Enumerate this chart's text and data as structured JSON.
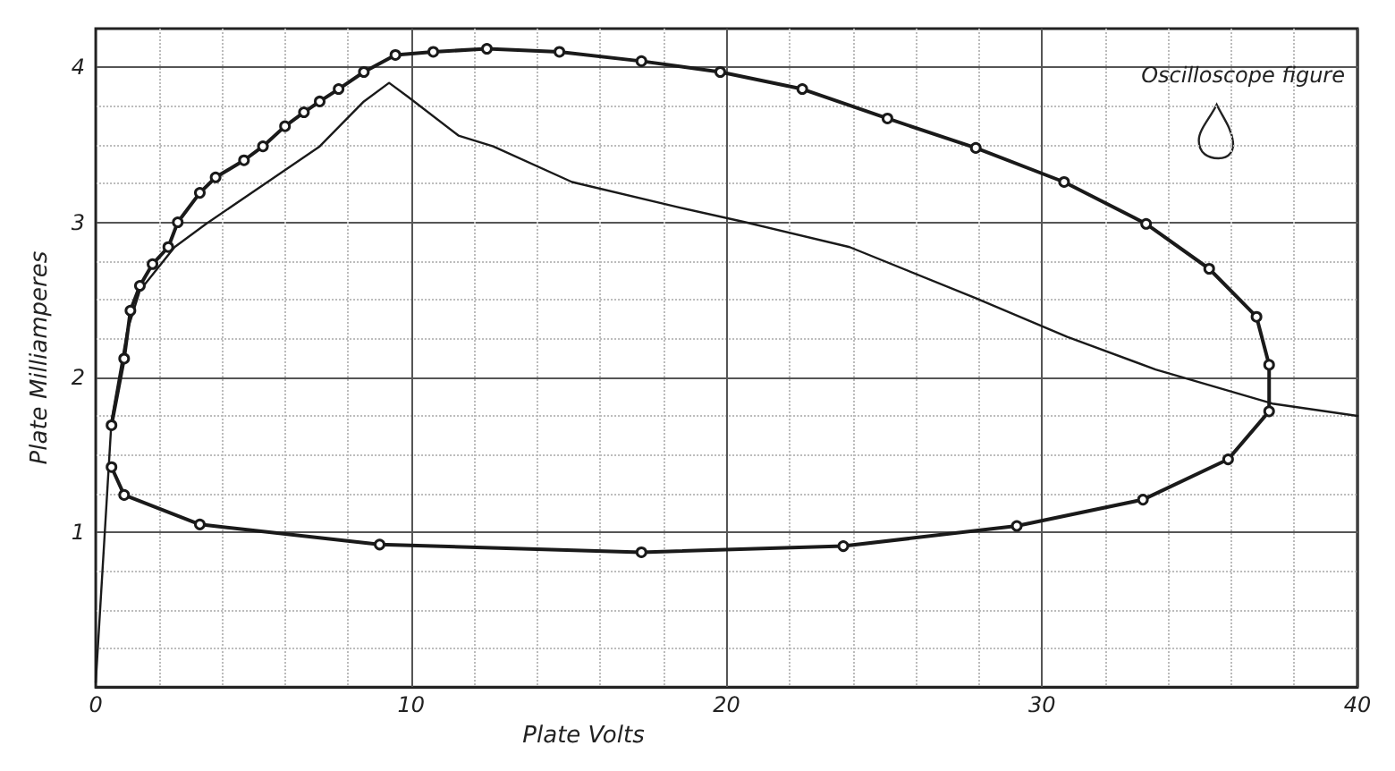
{
  "chart_data": {
    "type": "line",
    "xlabel": "Plate Volts",
    "ylabel": "Plate Milliamperes",
    "annotations": [
      "Oscilloscope figure"
    ],
    "xlim": [
      0,
      40
    ],
    "xticks": [
      0,
      10,
      20,
      30,
      40
    ],
    "ylim": [
      0,
      4.25
    ],
    "yticks": [
      1,
      2,
      3,
      4
    ],
    "grid": true,
    "series": [
      {
        "color": "#1a1a1a",
        "marker": "circle",
        "line_style": "solid",
        "x": [
          0.5,
          0.9,
          1.1,
          1.4,
          1.8,
          2.3,
          2.6,
          3.3,
          3.8,
          4.7,
          5.3,
          6.0,
          6.6,
          7.1,
          7.7,
          8.5,
          9.5,
          10.7,
          12.4,
          14.7,
          17.3,
          19.8,
          22.4,
          25.1,
          27.9,
          30.7,
          33.3,
          35.3,
          36.8,
          37.2,
          37.2,
          35.9,
          33.2,
          29.2,
          23.7,
          17.3,
          9.0,
          3.3,
          0.9,
          0.5
        ],
        "values": [
          1.69,
          2.12,
          2.43,
          2.59,
          2.73,
          2.84,
          3.0,
          3.19,
          3.29,
          3.4,
          3.49,
          3.62,
          3.71,
          3.78,
          3.86,
          3.97,
          4.08,
          4.1,
          4.12,
          4.1,
          4.04,
          3.97,
          3.86,
          3.67,
          3.48,
          3.26,
          2.99,
          2.7,
          2.39,
          2.08,
          1.78,
          1.47,
          1.21,
          1.04,
          0.91,
          0.87,
          0.92,
          1.05,
          1.24,
          1.42
        ]
      },
      {
        "color": "#1a1a1a",
        "marker": "none",
        "line_style": "solid",
        "x": [
          0,
          0.5,
          1.0,
          1.4,
          2.5,
          3.5,
          5.3,
          7.1,
          8.5,
          9.3,
          9.9,
          11.5,
          12.6,
          15.1,
          18.4,
          20.6,
          23.9,
          27.9,
          30.8,
          33.6,
          37.3,
          40
        ],
        "values": [
          0.03,
          1.72,
          2.3,
          2.56,
          2.84,
          2.99,
          3.24,
          3.49,
          3.78,
          3.9,
          3.81,
          3.56,
          3.49,
          3.26,
          3.1,
          3.0,
          2.84,
          2.51,
          2.26,
          2.05,
          1.83,
          1.75
        ]
      }
    ]
  }
}
